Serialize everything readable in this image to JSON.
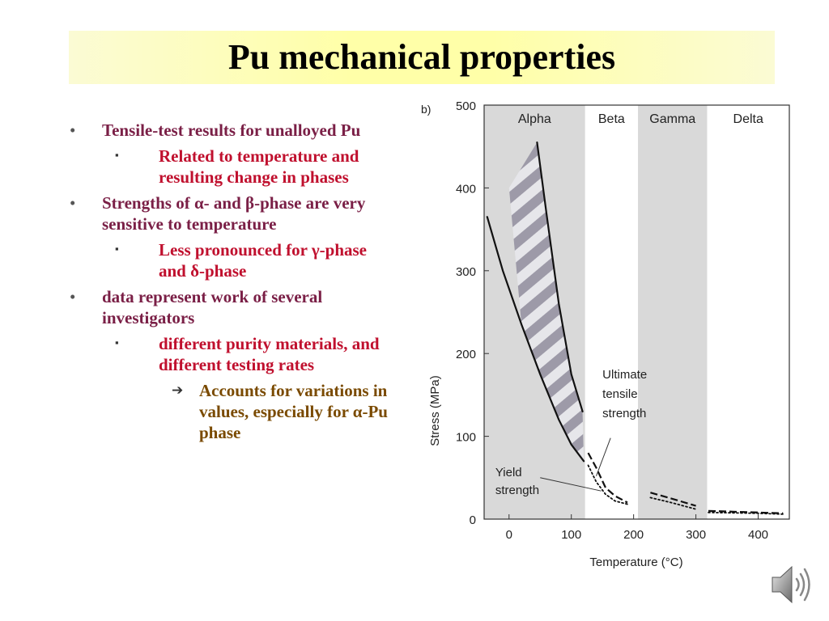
{
  "slide": {
    "title": "Pu mechanical properties"
  },
  "bullets": [
    {
      "level": 1,
      "marker": "•",
      "text": "Tensile-test results for unalloyed Pu"
    },
    {
      "level": 2,
      "marker": "▪",
      "text": "Related to temperature and resulting change in phases"
    },
    {
      "level": 1,
      "marker": "•",
      "text": "Strengths of α- and β-phase are very sensitive to temperature"
    },
    {
      "level": 2,
      "marker": "▪",
      "text": "Less pronounced for γ-phase and δ-phase"
    },
    {
      "level": 1,
      "marker": "•",
      "text": "data represent work of several investigators"
    },
    {
      "level": 2,
      "marker": "▪",
      "text": "different purity materials, and different testing rates"
    },
    {
      "level": 3,
      "marker": "➔",
      "text": "Accounts for variations in values, especially for  α-Pu phase"
    }
  ],
  "chart_data": {
    "type": "line",
    "panel_label": "b)",
    "xlabel": "Temperature (°C)",
    "ylabel": "Stress (MPa)",
    "xlim": [
      -40,
      450
    ],
    "ylim": [
      0,
      500
    ],
    "xticks": [
      0,
      100,
      200,
      300,
      400
    ],
    "yticks": [
      0,
      100,
      200,
      300,
      400,
      500
    ],
    "phases": [
      {
        "name": "Alpha",
        "x": [
          -40,
          122
        ],
        "shaded": true
      },
      {
        "name": "Beta",
        "x": [
          122,
          207
        ],
        "shaded": false
      },
      {
        "name": "Gamma",
        "x": [
          207,
          318
        ],
        "shaded": true
      },
      {
        "name": "Delta",
        "x": [
          318,
          450
        ],
        "shaded": false
      }
    ],
    "series": [
      {
        "name": "Ultimate tensile strength",
        "style": "solid",
        "x": [
          45,
          60,
          80,
          100,
          118
        ],
        "y": [
          455,
          370,
          260,
          175,
          130
        ]
      },
      {
        "name": "Yield strength",
        "style": "solid",
        "x": [
          -35,
          -10,
          20,
          50,
          80,
          100,
          120
        ],
        "y": [
          365,
          300,
          235,
          175,
          120,
          90,
          70
        ]
      },
      {
        "name": "Ultimate tensile strength",
        "style": "dashed",
        "x": [
          127,
          140,
          155,
          170,
          190
        ],
        "y": [
          80,
          62,
          38,
          28,
          20
        ]
      },
      {
        "name": "Yield strength",
        "style": "dotted",
        "x": [
          127,
          140,
          155,
          170,
          190
        ],
        "y": [
          65,
          45,
          30,
          22,
          18
        ]
      },
      {
        "name": "Ultimate tensile strength",
        "style": "dashed",
        "x": [
          227,
          260,
          300
        ],
        "y": [
          32,
          25,
          16
        ]
      },
      {
        "name": "Yield strength",
        "style": "dotted",
        "x": [
          227,
          260,
          300
        ],
        "y": [
          26,
          20,
          12
        ]
      },
      {
        "name": "Ultimate tensile strength",
        "style": "dashed",
        "x": [
          320,
          360,
          400,
          440
        ],
        "y": [
          10,
          9,
          8,
          7
        ]
      },
      {
        "name": "Yield strength",
        "style": "dotted",
        "x": [
          320,
          360,
          400,
          440
        ],
        "y": [
          8,
          7.5,
          7,
          6
        ]
      }
    ],
    "annotations": [
      {
        "text": "Ultimate tensile strength",
        "lines": [
          "Ultimate",
          "tensile",
          "strength"
        ]
      },
      {
        "text": "Yield strength",
        "lines": [
          "Yield",
          "strength"
        ]
      }
    ]
  },
  "icons": {
    "speaker": "speaker-icon"
  }
}
